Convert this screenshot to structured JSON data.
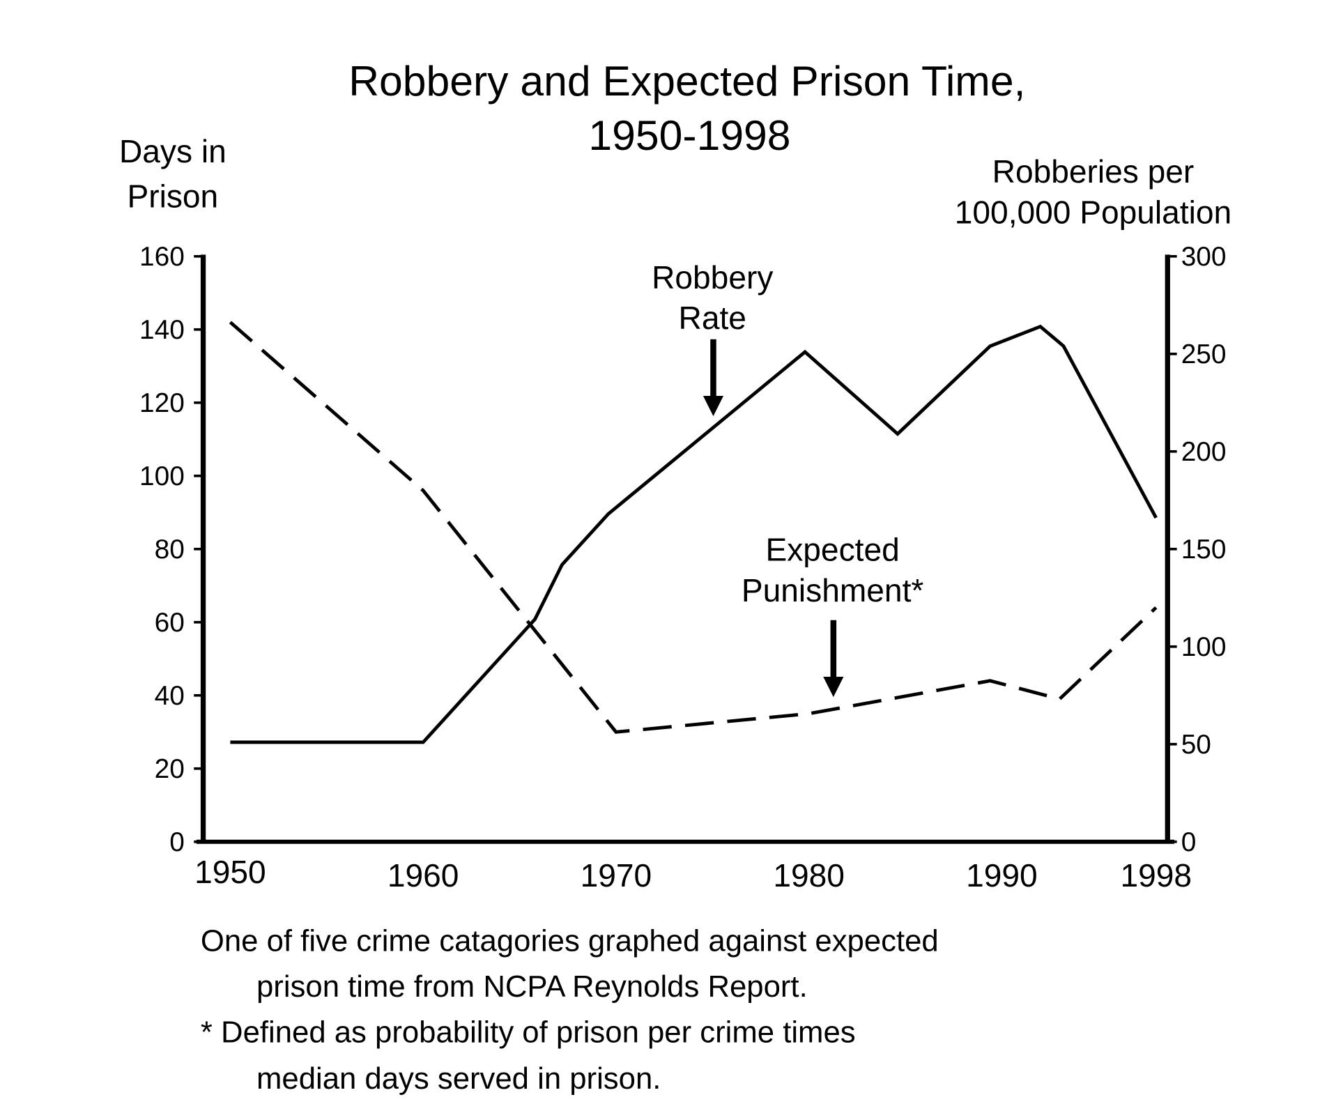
{
  "chart_data": {
    "type": "line",
    "title": "Robbery and Expected Prison Time,",
    "title_line2": "1950-1998",
    "ylabel_left": [
      "Days in",
      "Prison"
    ],
    "ylabel_right": [
      "Robberies per",
      "100,000 Population"
    ],
    "xlim": [
      1950,
      1998
    ],
    "ylim_left": [
      0,
      160
    ],
    "ylim_right": [
      0,
      300
    ],
    "x_ticks": [
      "1950",
      "1960",
      "1970",
      "1980",
      "1990",
      "1998"
    ],
    "x_tick_values": [
      1950,
      1960,
      1970,
      1980,
      1990,
      1998
    ],
    "y_left_ticks": [
      "0",
      "20",
      "40",
      "60",
      "80",
      "100",
      "120",
      "140",
      "160"
    ],
    "y_right_ticks": [
      "0",
      "50",
      "100",
      "150",
      "200",
      "250",
      "300"
    ],
    "grid": false,
    "series": [
      {
        "name": "Robbery Rate",
        "label_lines": [
          "Robbery",
          "Rate"
        ],
        "axis": "right",
        "style": "solid",
        "x": [
          1950,
          1960,
          1965.8,
          1967.2,
          1969.6,
          1979.8,
          1984.6,
          1989.4,
          1992.0,
          1993.2,
          1998
        ],
        "y": [
          51,
          51,
          114,
          142,
          168,
          251,
          209,
          254,
          264,
          254,
          166
        ]
      },
      {
        "name": "Expected Punishment*",
        "label_lines": [
          "Expected",
          "Punishment*"
        ],
        "axis": "left",
        "style": "dashed",
        "x": [
          1950,
          1960,
          1970,
          1980,
          1989.4,
          1993.0,
          1998
        ],
        "y": [
          142,
          96,
          30,
          35,
          44,
          39,
          64
        ]
      }
    ],
    "notes": [
      "One of five crime catagories graphed against expected",
      "prison time from NCPA Reynolds Report.",
      "* Defined as probability of prison per crime times",
      "median days served in prison."
    ]
  }
}
